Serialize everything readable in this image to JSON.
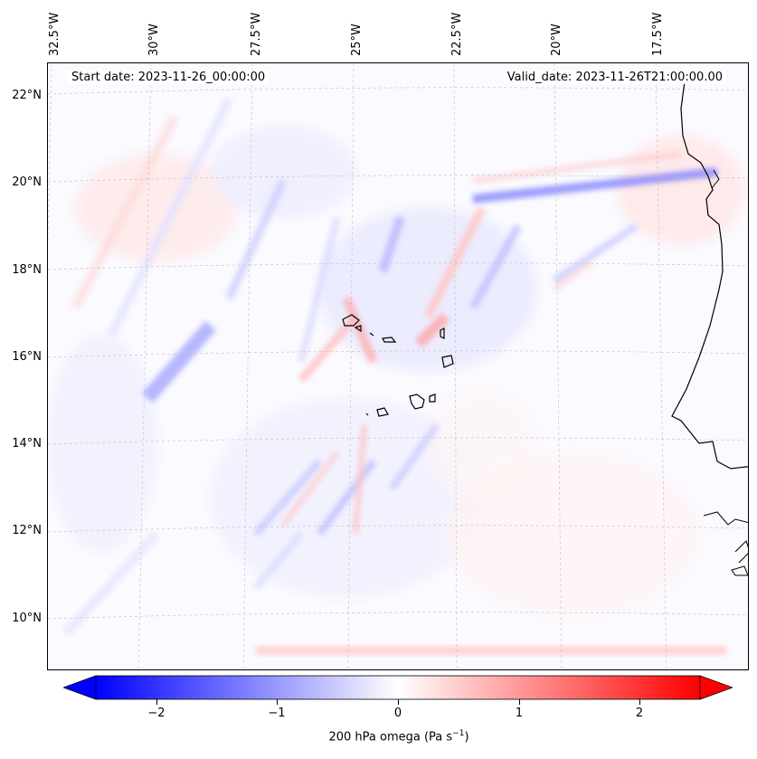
{
  "map": {
    "start_date": "Start date: 2023-11-26_00:00:00",
    "valid_date": "Valid_date: 2023-11-26T21:00:00.00",
    "lon_labels": [
      "32.5°W",
      "30°W",
      "27.5°W",
      "25°W",
      "22.5°W",
      "20°W",
      "17.5°W"
    ],
    "lat_labels": [
      "22°N",
      "20°N",
      "18°N",
      "16°N",
      "14°N",
      "12°N",
      "10°N"
    ],
    "field": "200 hPa omega",
    "colormap": "bwr",
    "gridlines": true
  },
  "colorbar": {
    "label_main": "200 hPa omega (Pa s",
    "label_exp": "−1",
    "label_close": ")",
    "ticks": [
      "−2",
      "−1",
      "0",
      "1",
      "2"
    ],
    "min": -2.5,
    "max": 2.5,
    "colors": {
      "neg": "#0000ff",
      "mid": "#ffffff",
      "pos": "#ff0000"
    }
  }
}
